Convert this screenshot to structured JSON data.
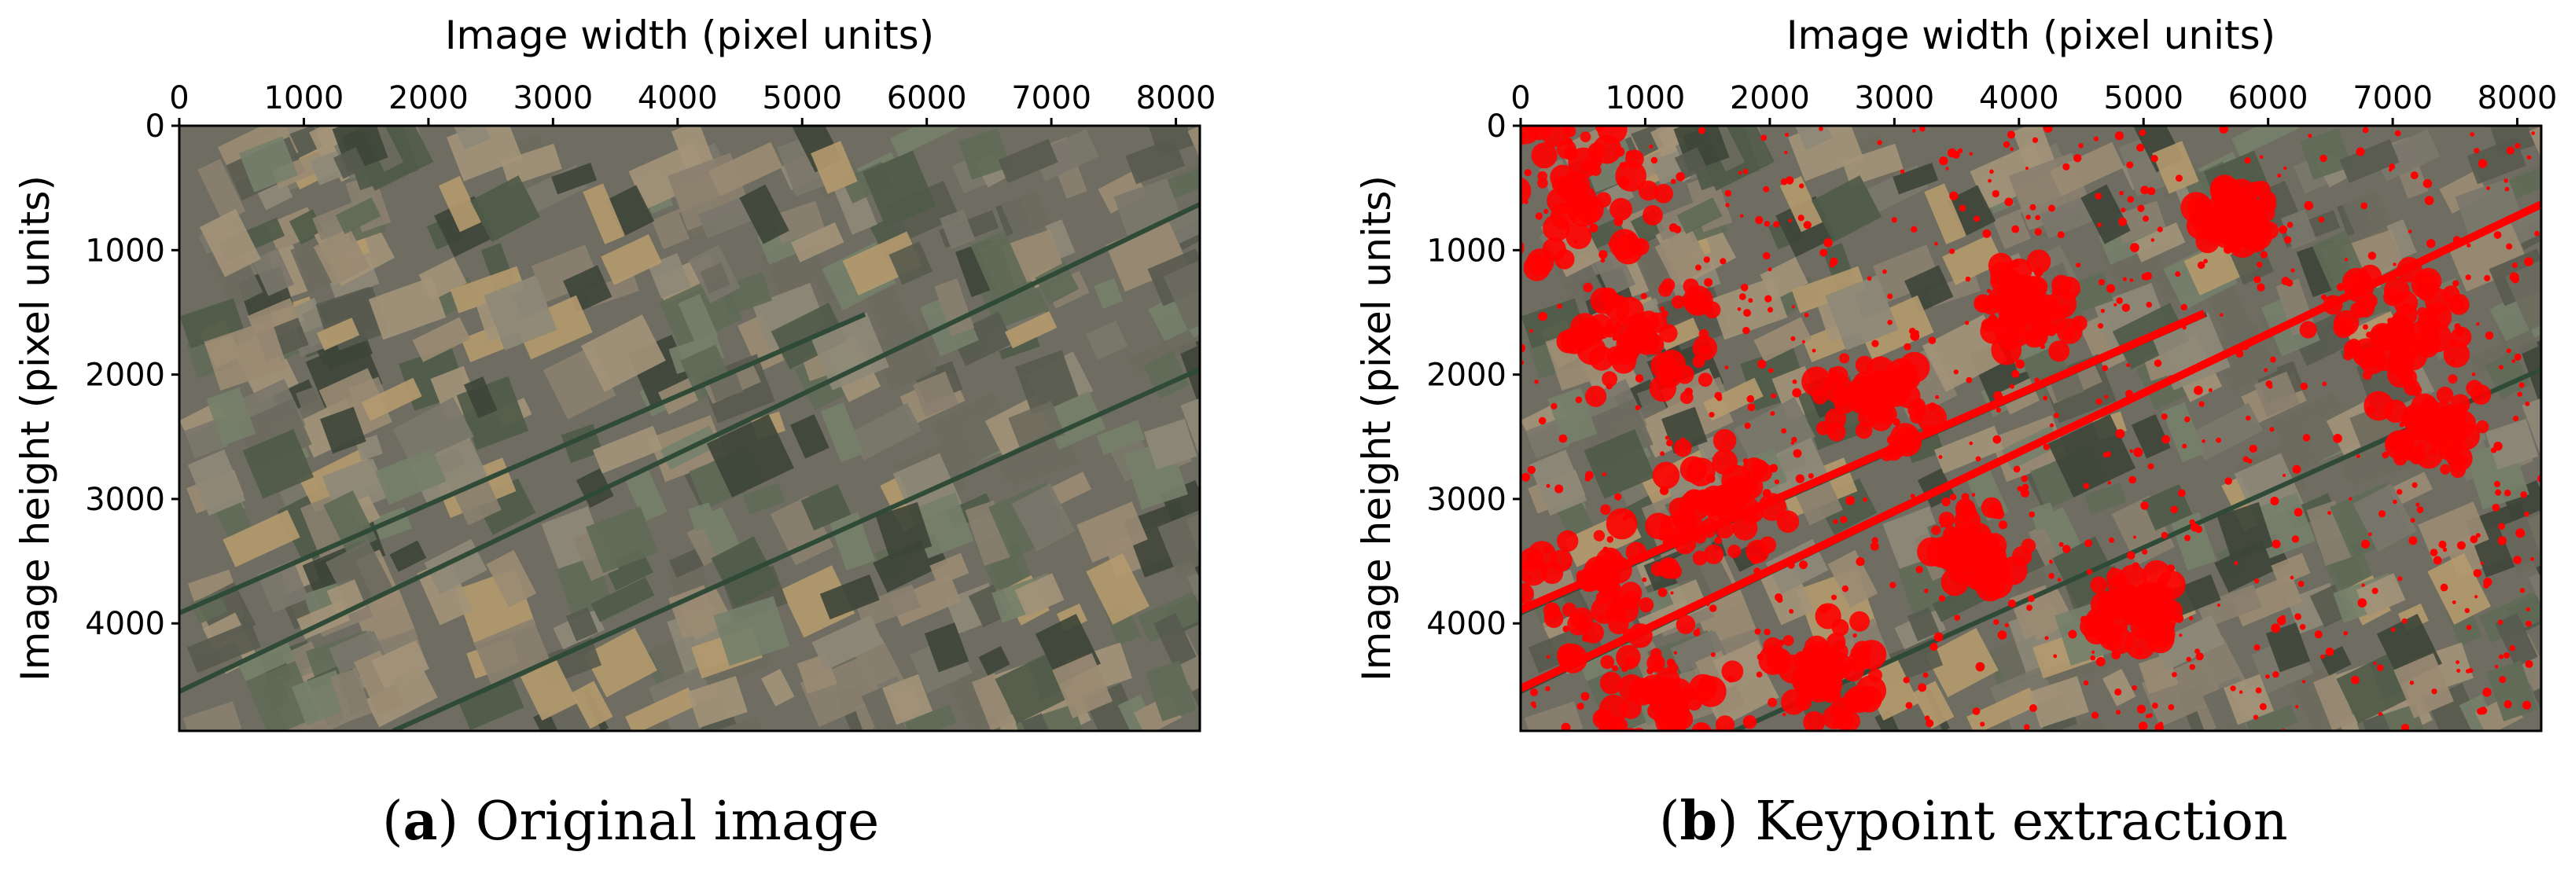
{
  "panels": [
    {
      "id": "a",
      "letter": "a",
      "caption": "Original image",
      "xlabel": "Image width (pixel units)",
      "ylabel": "Image height (pixel units)",
      "x_ticks": [
        "0",
        "1000",
        "2000",
        "3000",
        "4000",
        "5000",
        "6000",
        "7000",
        "8000"
      ],
      "y_ticks": [
        "0",
        "1000",
        "2000",
        "3000",
        "4000"
      ],
      "image_kind": "original"
    },
    {
      "id": "b",
      "letter": "b",
      "caption": "Keypoint extraction",
      "xlabel": "Image width (pixel units)",
      "ylabel": "Image height (pixel units)",
      "x_ticks": [
        "0",
        "1000",
        "2000",
        "3000",
        "4000",
        "5000",
        "6000",
        "7000",
        "8000"
      ],
      "y_ticks": [
        "0",
        "1000",
        "2000",
        "3000",
        "4000"
      ],
      "image_kind": "keypoints"
    }
  ],
  "colors": {
    "field_base": "#6f6d62",
    "keypoint": "#ff0000"
  }
}
